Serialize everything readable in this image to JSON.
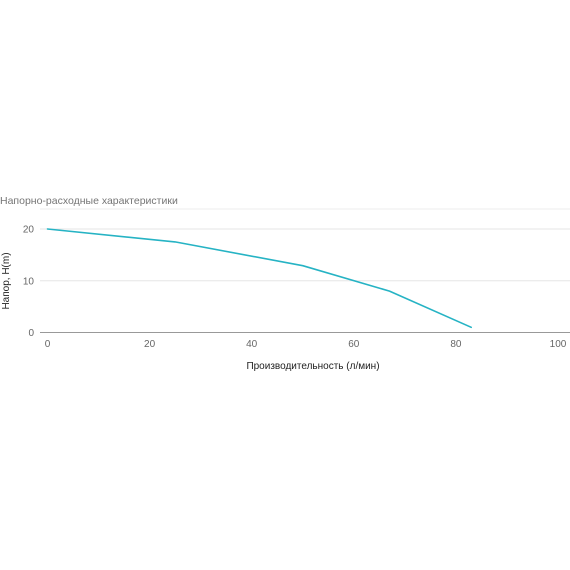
{
  "chart_data": {
    "type": "line",
    "title": "Напорно-расходные характеристики",
    "xlabel": "Производительность (л/мин)",
    "ylabel": "Напор, H(m)",
    "xlim": [
      0,
      100
    ],
    "ylim": [
      0,
      20
    ],
    "x_ticks": [
      0,
      20,
      40,
      60,
      80,
      100
    ],
    "y_ticks": [
      0,
      10,
      20
    ],
    "grid": true,
    "legend": "none",
    "series": [
      {
        "color": "#26b3c4",
        "points": [
          {
            "x": 0,
            "y": 20
          },
          {
            "x": 25,
            "y": 17.5
          },
          {
            "x": 50,
            "y": 12.9
          },
          {
            "x": 67,
            "y": 8
          },
          {
            "x": 83,
            "y": 1
          }
        ]
      }
    ]
  }
}
